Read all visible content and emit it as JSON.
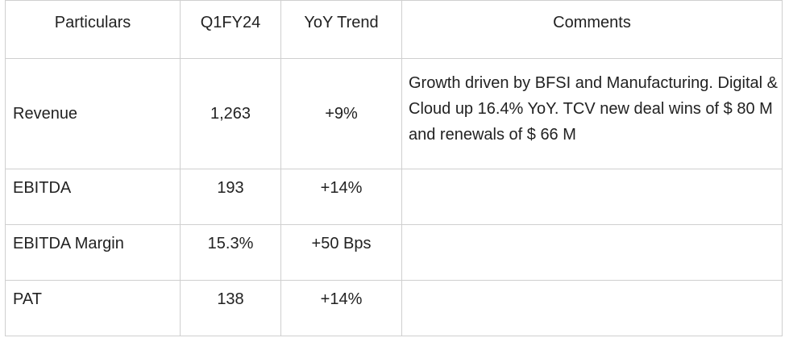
{
  "table": {
    "headers": [
      "Particulars",
      "Q1FY24",
      "YoY Trend",
      "Comments"
    ],
    "rows": [
      {
        "particular": "Revenue",
        "q1fy24": "1,263",
        "yoy": "+9%",
        "comment": "Growth driven by BFSI and Manufacturing. Digital & Cloud up 16.4% YoY. TCV new deal wins of $ 80 M and renewals of $ 66 M"
      },
      {
        "particular": "EBITDA",
        "q1fy24": "193",
        "yoy": "+14%",
        "comment": ""
      },
      {
        "particular": "EBITDA Margin",
        "q1fy24": "15.3%",
        "yoy": "+50 Bps",
        "comment": ""
      },
      {
        "particular": "PAT",
        "q1fy24": "138",
        "yoy": "+14%",
        "comment": ""
      }
    ]
  }
}
